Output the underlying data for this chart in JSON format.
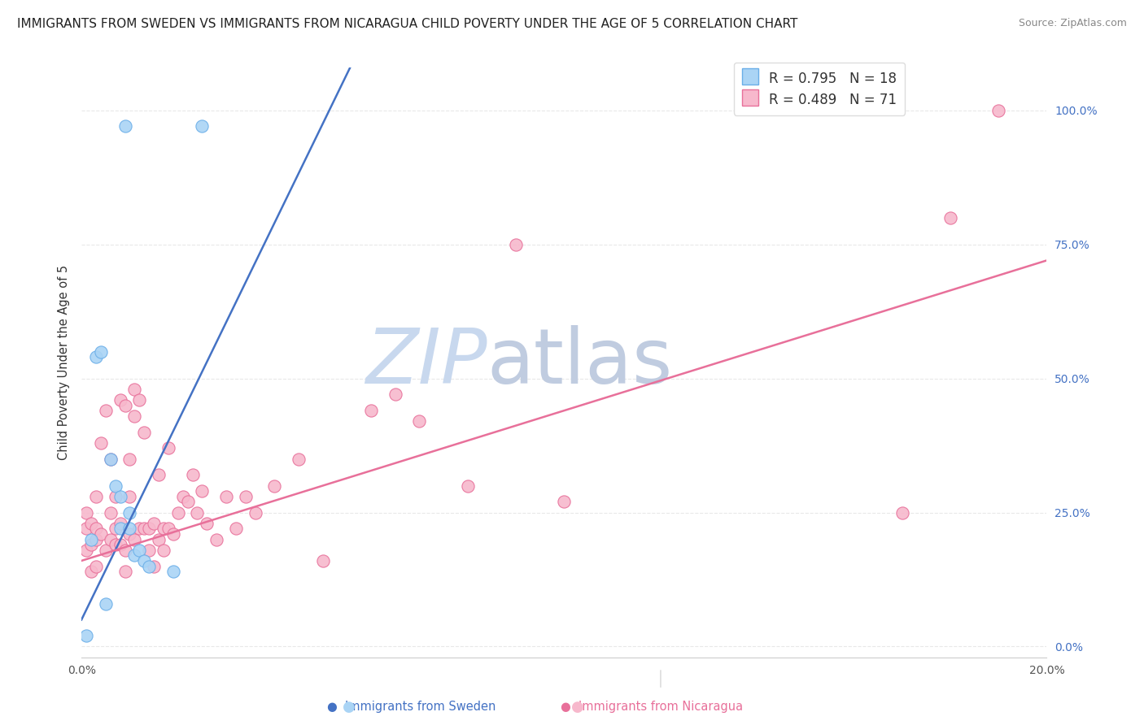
{
  "title": "IMMIGRANTS FROM SWEDEN VS IMMIGRANTS FROM NICARAGUA CHILD POVERTY UNDER THE AGE OF 5 CORRELATION CHART",
  "source": "Source: ZipAtlas.com",
  "ylabel": "Child Poverty Under the Age of 5",
  "sweden_label": "Immigrants from Sweden",
  "nicaragua_label": "Immigrants from Nicaragua",
  "sweden_R": 0.795,
  "sweden_N": 18,
  "nicaragua_R": 0.489,
  "nicaragua_N": 71,
  "xlim": [
    0.0,
    0.2
  ],
  "ylim": [
    -0.02,
    1.08
  ],
  "right_yticks": [
    0.0,
    0.25,
    0.5,
    0.75,
    1.0
  ],
  "right_ytick_labels": [
    "0.0%",
    "25.0%",
    "50.0%",
    "75.0%",
    "100.0%"
  ],
  "bottom_xticks": [
    0.0,
    0.04,
    0.08,
    0.12,
    0.16,
    0.2
  ],
  "grid_color": "#e8e8e8",
  "sweden_color": "#aad4f5",
  "sweden_edge_color": "#6aaee8",
  "nicaragua_color": "#f7b8cc",
  "nicaragua_edge_color": "#e8709a",
  "sweden_line_color": "#4472c4",
  "nicaragua_line_color": "#e8709a",
  "watermark_zip_color": "#c8d8ee",
  "watermark_atlas_color": "#c0cce0",
  "sweden_line_slope": 18.5,
  "sweden_line_intercept": 0.05,
  "nicaragua_line_slope": 2.8,
  "nicaragua_line_intercept": 0.16,
  "sweden_x": [
    0.001,
    0.002,
    0.003,
    0.004,
    0.005,
    0.006,
    0.007,
    0.008,
    0.008,
    0.009,
    0.01,
    0.01,
    0.011,
    0.012,
    0.013,
    0.014,
    0.019,
    0.025
  ],
  "sweden_y": [
    0.02,
    0.2,
    0.54,
    0.55,
    0.08,
    0.35,
    0.3,
    0.22,
    0.28,
    0.97,
    0.22,
    0.25,
    0.17,
    0.18,
    0.16,
    0.15,
    0.14,
    0.97
  ],
  "nicaragua_x": [
    0.001,
    0.001,
    0.001,
    0.002,
    0.002,
    0.002,
    0.003,
    0.003,
    0.003,
    0.003,
    0.004,
    0.004,
    0.005,
    0.005,
    0.006,
    0.006,
    0.006,
    0.007,
    0.007,
    0.007,
    0.008,
    0.008,
    0.008,
    0.009,
    0.009,
    0.009,
    0.01,
    0.01,
    0.01,
    0.011,
    0.011,
    0.011,
    0.012,
    0.012,
    0.013,
    0.013,
    0.014,
    0.014,
    0.015,
    0.015,
    0.016,
    0.016,
    0.017,
    0.017,
    0.018,
    0.018,
    0.019,
    0.02,
    0.021,
    0.022,
    0.023,
    0.024,
    0.025,
    0.026,
    0.028,
    0.03,
    0.032,
    0.034,
    0.036,
    0.04,
    0.045,
    0.05,
    0.06,
    0.065,
    0.07,
    0.08,
    0.09,
    0.1,
    0.17,
    0.18,
    0.19
  ],
  "nicaragua_y": [
    0.18,
    0.22,
    0.25,
    0.14,
    0.19,
    0.23,
    0.15,
    0.2,
    0.22,
    0.28,
    0.21,
    0.38,
    0.18,
    0.44,
    0.2,
    0.25,
    0.35,
    0.19,
    0.22,
    0.28,
    0.19,
    0.23,
    0.46,
    0.14,
    0.18,
    0.45,
    0.21,
    0.28,
    0.35,
    0.2,
    0.43,
    0.48,
    0.22,
    0.46,
    0.22,
    0.4,
    0.18,
    0.22,
    0.15,
    0.23,
    0.2,
    0.32,
    0.18,
    0.22,
    0.22,
    0.37,
    0.21,
    0.25,
    0.28,
    0.27,
    0.32,
    0.25,
    0.29,
    0.23,
    0.2,
    0.28,
    0.22,
    0.28,
    0.25,
    0.3,
    0.35,
    0.16,
    0.44,
    0.47,
    0.42,
    0.3,
    0.75,
    0.27,
    0.25,
    0.8,
    1.0
  ],
  "background_color": "#ffffff",
  "title_fontsize": 11,
  "axis_label_fontsize": 10.5,
  "tick_fontsize": 10,
  "legend_fontsize": 12,
  "source_fontsize": 9
}
